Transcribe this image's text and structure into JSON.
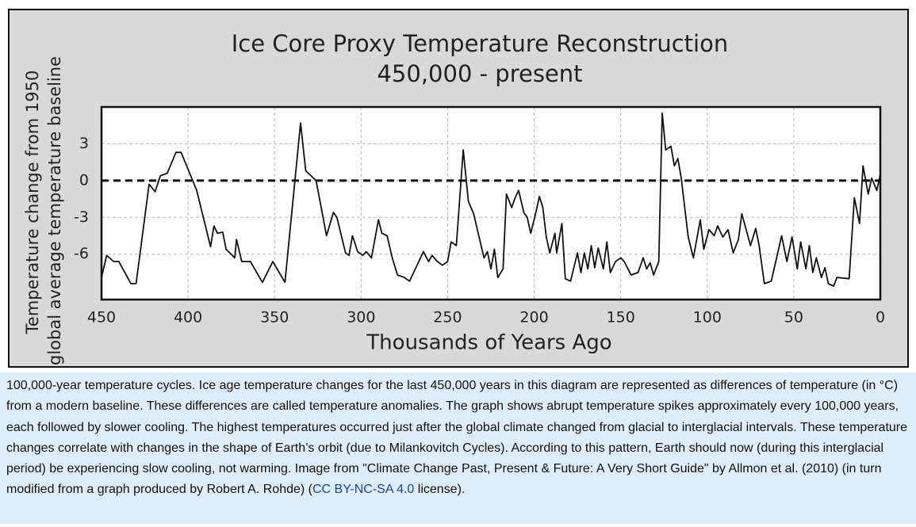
{
  "chart_data": {
    "type": "line",
    "title": "Ice Core Proxy Temperature Reconstruction",
    "subtitle": "450,000 - present",
    "y_label": [
      "Temperature change from 1950",
      "global average temperature baseline"
    ],
    "x_label": "Thousands of Years Ago",
    "xlim": [
      450,
      0
    ],
    "xticks": [
      450,
      400,
      350,
      300,
      250,
      200,
      150,
      100,
      50,
      0
    ],
    "ylim": [
      -9.7,
      6
    ],
    "yticks": [
      -6,
      -3,
      0,
      3
    ],
    "grid": true,
    "baseline": 0,
    "x": [
      450,
      447,
      443,
      440,
      433,
      430,
      422.5,
      419,
      416,
      412,
      407,
      404,
      395,
      387,
      385,
      383,
      380,
      378,
      373,
      372,
      369,
      364,
      357,
      351,
      344,
      335,
      332,
      326,
      320,
      316,
      314,
      309,
      307,
      305,
      302,
      299,
      297,
      294,
      290,
      288,
      285,
      282,
      279,
      275,
      272,
      264,
      261,
      259,
      256,
      253,
      250,
      248,
      245,
      241,
      238,
      235,
      229,
      227,
      225,
      223,
      221,
      218,
      216,
      213,
      211,
      209,
      206,
      204,
      202,
      199,
      197,
      195,
      193,
      191,
      188,
      187,
      184,
      182,
      179,
      175,
      173,
      171,
      169,
      167,
      165,
      163,
      160,
      158,
      156,
      153,
      150,
      148,
      144,
      140,
      137,
      135,
      133,
      131,
      128,
      126,
      124,
      121,
      119,
      117,
      115,
      111,
      108,
      104,
      102,
      99,
      96,
      94,
      91,
      88,
      85,
      82,
      80,
      75,
      72,
      70,
      67,
      63,
      57,
      54,
      51,
      48,
      46,
      43,
      41,
      39,
      37,
      34,
      32,
      30,
      27,
      25,
      18,
      15,
      12,
      10,
      7,
      5,
      2,
      0
    ],
    "series": [
      {
        "color": "#111111",
        "values": [
          -7.9,
          -6.1,
          -6.6,
          -6.6,
          -8.4,
          -8.4,
          -0.3,
          -0.9,
          0.4,
          0.6,
          2.3,
          2.3,
          -0.8,
          -5.4,
          -3.7,
          -4.3,
          -4.2,
          -5.6,
          -6.3,
          -4.8,
          -6.6,
          -6.6,
          -8.3,
          -6.6,
          -8.3,
          4.7,
          0.8,
          0,
          -4.5,
          -2.6,
          -3,
          -5.9,
          -6.1,
          -4.5,
          -5.8,
          -6.1,
          -5.8,
          -6.3,
          -3.2,
          -4.3,
          -4.5,
          -6.3,
          -7.7,
          -7.9,
          -8.2,
          -5.8,
          -6.6,
          -6.1,
          -6.6,
          -6.9,
          -6.6,
          -5,
          -5.3,
          2.5,
          -1.7,
          -2.7,
          -6.3,
          -5.8,
          -7.2,
          -5.6,
          -7.9,
          -7.2,
          -1.1,
          -2.2,
          -1.4,
          -0.8,
          -2.6,
          -3,
          -4.3,
          -2.6,
          -1.3,
          -2.2,
          -4.6,
          -5.9,
          -4.3,
          -5.9,
          -3.5,
          -8,
          -8.2,
          -5.9,
          -7.5,
          -5.9,
          -7.2,
          -5.3,
          -7.1,
          -5.5,
          -7.2,
          -5,
          -7.5,
          -6.6,
          -6.3,
          -6.6,
          -7.7,
          -7.5,
          -6.3,
          -7.2,
          -6.7,
          -7.7,
          -6.6,
          5.5,
          2.5,
          2.8,
          1.2,
          1.8,
          0.2,
          -4.6,
          -6.3,
          -3.2,
          -5.6,
          -4,
          -4.5,
          -3.7,
          -4.6,
          -4,
          -5.9,
          -4.8,
          -2.7,
          -5.3,
          -3.9,
          -5.3,
          -8.4,
          -8.2,
          -4.5,
          -6.6,
          -4.6,
          -7.2,
          -5,
          -7.2,
          -5.3,
          -7.5,
          -6.3,
          -7.9,
          -7.1,
          -8.4,
          -8.6,
          -7.9,
          -8,
          -1.4,
          -3.5,
          1.2,
          -1.1,
          0.2,
          -0.8,
          0.5
        ]
      }
    ]
  },
  "caption": {
    "before": "100,000-year temperature cycles. Ice age temperature changes for the last 450,000 years in this diagram are represented as differences of temperature (in °C) from a modern baseline. These differences are called temperature anomalies. The graph shows abrupt temperature spikes approximately every 100,000 years, each followed by slower cooling. The highest temperatures occurred just after the global climate changed from glacial to interglacial intervals. These temperature changes correlate with changes in the shape of Earth’s orbit (due to Milankovitch Cycles). According to this pattern, Earth should now (during this interglacial period) be experiencing slow cooling, not warming. Image from \"Climate Change Past, Present & Future: A Very Short Guide\" by Allmon et al. (2010) (in turn modified from a graph produced by Robert A. Rohde) (",
    "link": "CC BY-NC-SA 4.0",
    "after": " license)."
  }
}
